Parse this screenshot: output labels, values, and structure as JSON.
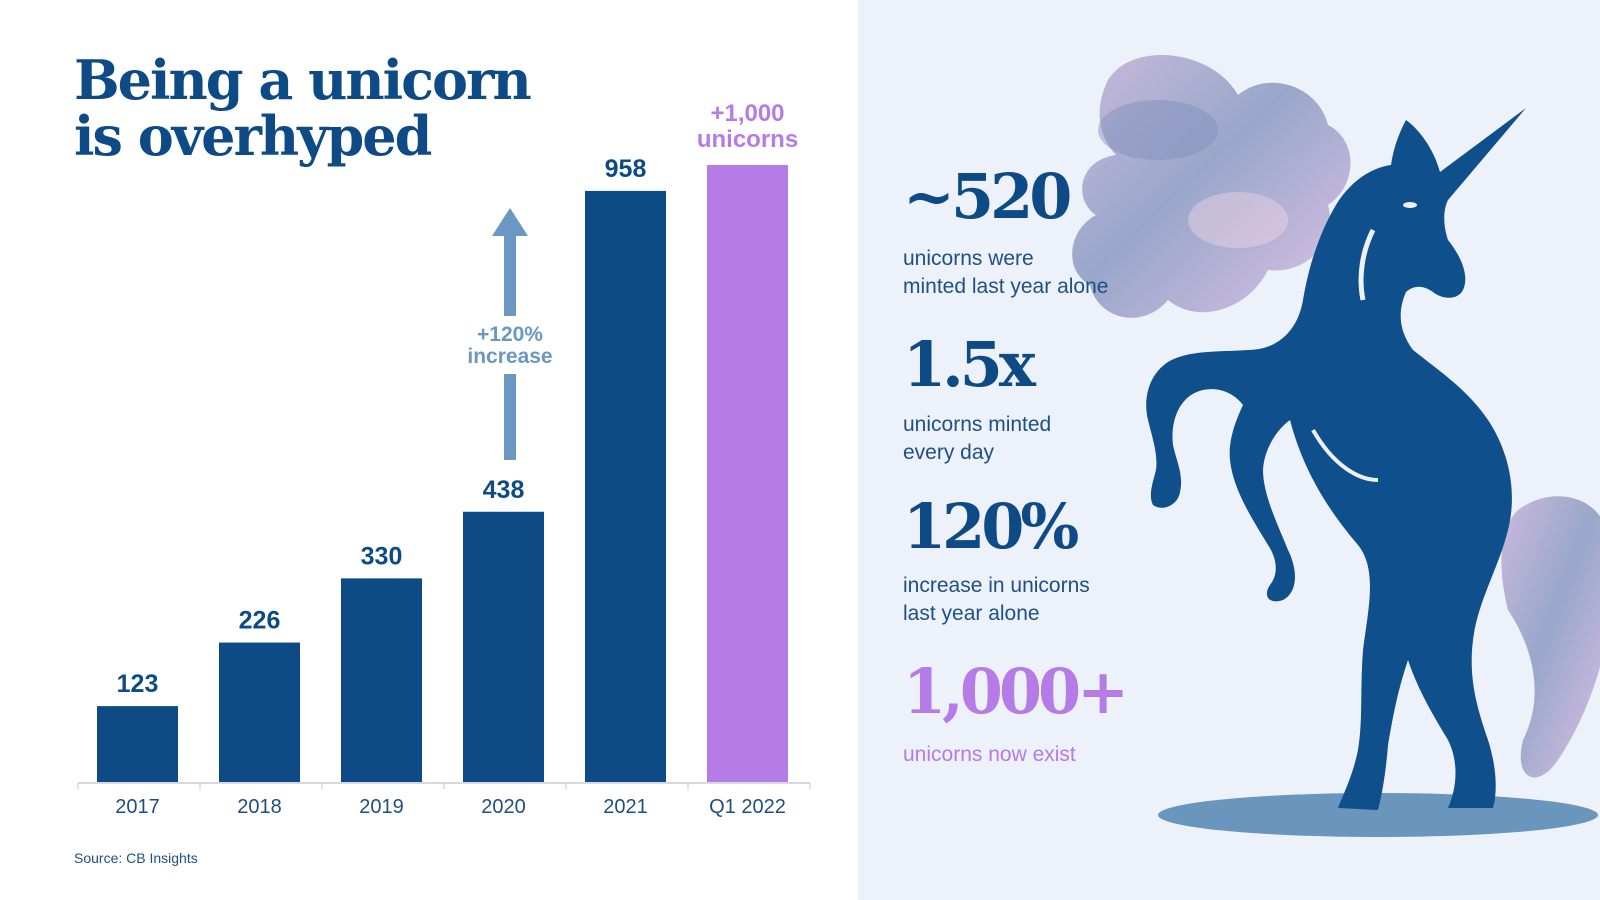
{
  "title": {
    "line1": "Being a unicorn",
    "line2": "is overhyped"
  },
  "source": "Source: CB Insights",
  "colors": {
    "navy": "#0d4a86",
    "purple": "#b57be6",
    "arrow": "#6a98c2",
    "panel": "#edf1fa"
  },
  "chart_data": {
    "type": "bar",
    "categories": [
      "2017",
      "2018",
      "2019",
      "2020",
      "2021",
      "Q1 2022"
    ],
    "values": [
      123,
      226,
      330,
      438,
      958,
      1000
    ],
    "value_labels": [
      "123",
      "226",
      "330",
      "438",
      "958",
      ""
    ],
    "highlight_label": [
      "+1,000",
      "unicorns"
    ],
    "highlight_index": 5,
    "annotation": {
      "line1": "+120%",
      "line2": "increase"
    },
    "ylim": [
      0,
      1000
    ],
    "grid": false,
    "xlabel": "",
    "ylabel": ""
  },
  "stats": [
    {
      "value": "~520",
      "desc_line1": "unicorns were",
      "desc_line2": "minted last year alone",
      "color": "navy"
    },
    {
      "value": "1.5x",
      "desc_line1": "unicorns minted",
      "desc_line2": "every day",
      "color": "navy"
    },
    {
      "value": "120%",
      "desc_line1": "increase in unicorns",
      "desc_line2": "last year alone",
      "color": "navy"
    },
    {
      "value": "1,000+",
      "desc_line1": "unicorns now exist",
      "desc_line2": "",
      "color": "purple"
    }
  ],
  "illustration": "unicorn-icon"
}
